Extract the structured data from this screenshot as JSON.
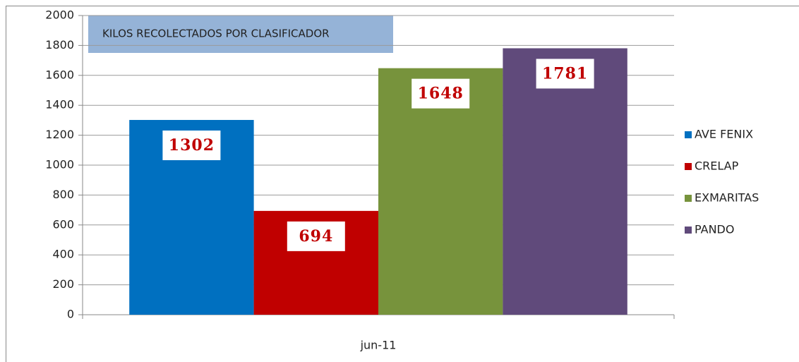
{
  "chart_data": {
    "type": "bar",
    "title": "KILOS RECOLECTADOS POR CLASIFICADOR",
    "categories": [
      "jun-11"
    ],
    "series": [
      {
        "name": "AVE FENIX",
        "color": "#0070c0",
        "values": [
          1302
        ]
      },
      {
        "name": "CRELAP",
        "color": "#c00000",
        "values": [
          694
        ]
      },
      {
        "name": "EXMARITAS",
        "color": "#77933c",
        "values": [
          1648
        ]
      },
      {
        "name": "PANDO",
        "color": "#604a7b",
        "values": [
          1781
        ]
      }
    ],
    "ylim": [
      0,
      2000
    ],
    "yticks": [
      0,
      200,
      400,
      600,
      800,
      1000,
      1200,
      1400,
      1600,
      1800,
      2000
    ],
    "grid": true,
    "legend": "right"
  }
}
